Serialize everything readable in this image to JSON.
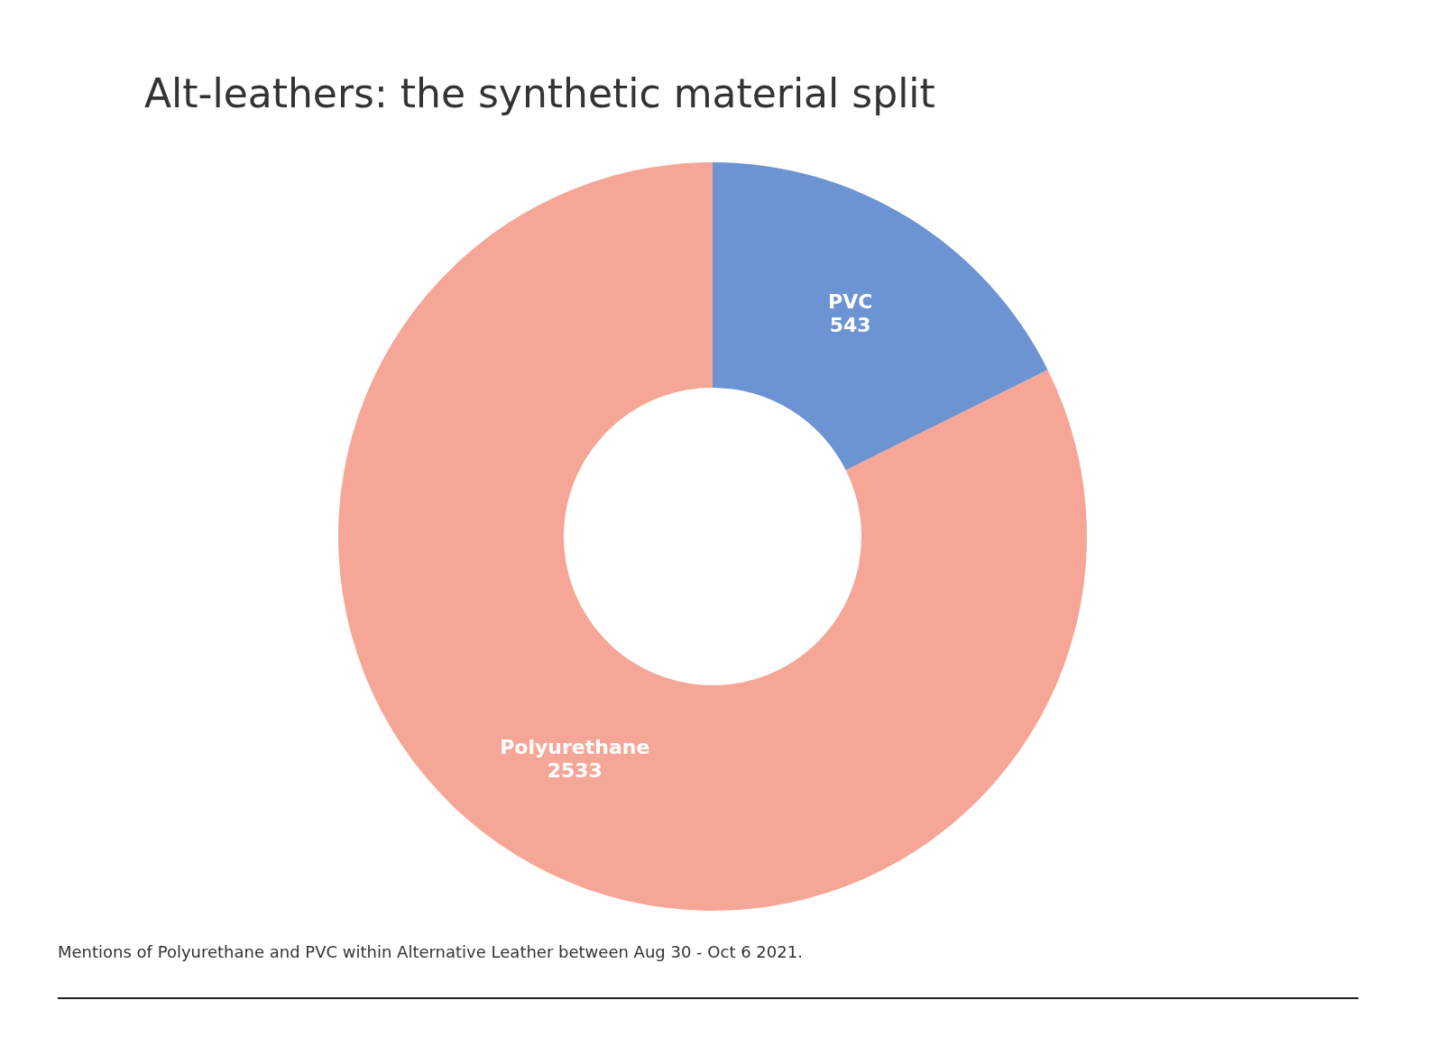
{
  "chart_data": {
    "type": "donut",
    "title": "Alt-leathers: the synthetic material split",
    "categories": [
      "PVC",
      "Polyurethane"
    ],
    "values": [
      543,
      2533
    ],
    "colors": [
      "#6c93d2",
      "#f6a696"
    ],
    "data_labels": true,
    "annotations": [
      "Mentions of Polyurethane and PVC within Alternative Leather between Aug 30 - Oct 6 2021."
    ]
  }
}
